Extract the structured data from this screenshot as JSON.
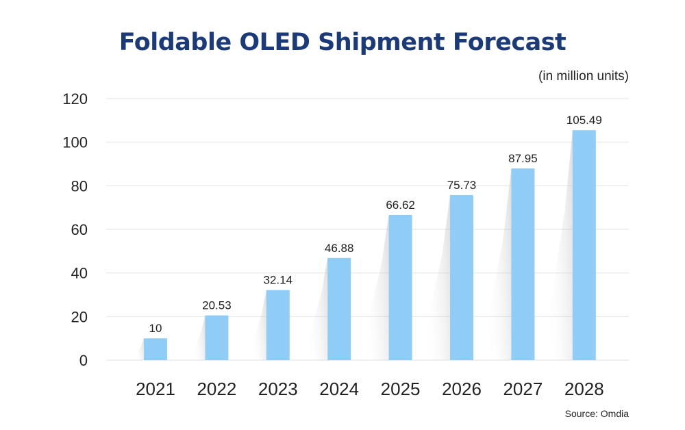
{
  "chart_data": {
    "type": "bar",
    "title": "Foldable OLED Shipment Forecast",
    "unit_label": "(in million units)",
    "source": "Source: Omdia",
    "categories": [
      "2021",
      "2022",
      "2023",
      "2024",
      "2025",
      "2026",
      "2027",
      "2028"
    ],
    "values": [
      10,
      20.53,
      32.14,
      46.88,
      66.62,
      75.73,
      87.95,
      105.49
    ],
    "value_labels": [
      "10",
      "20.53",
      "32.14",
      "46.88",
      "66.62",
      "75.73",
      "87.95",
      "105.49"
    ],
    "yticks": [
      0,
      20,
      40,
      60,
      80,
      100,
      120
    ],
    "ylim": [
      0,
      120
    ],
    "grid": true,
    "legend": "none",
    "xlabel": "",
    "ylabel": "",
    "colors": {
      "bar": "#8FCDF7",
      "title": "#1B3A7A",
      "grid": "#E6E6E6",
      "text": "#222222"
    }
  }
}
